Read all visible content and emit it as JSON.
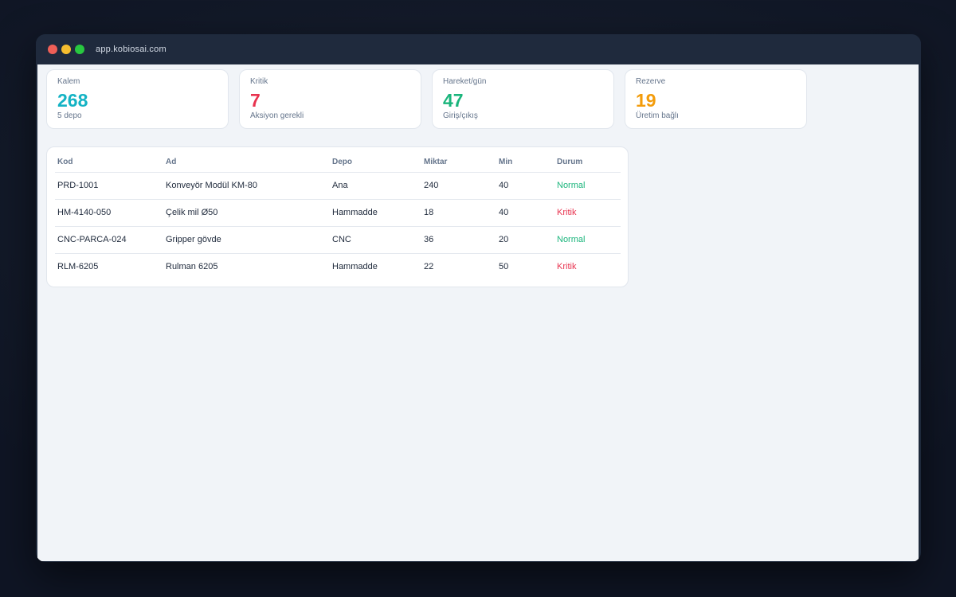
{
  "browser": {
    "url": "app.kobiosai.com"
  },
  "stats": [
    {
      "label": "Kalem",
      "value": "268",
      "sub": "5 depo",
      "color": "#14b3c4"
    },
    {
      "label": "Kritik",
      "value": "7",
      "sub": "Aksiyon gerekli",
      "color": "#e8334f"
    },
    {
      "label": "Hareket/gün",
      "value": "47",
      "sub": "Giriş/çıkış",
      "color": "#1bb57c"
    },
    {
      "label": "Rezerve",
      "value": "19",
      "sub": "Üretim bağlı",
      "color": "#f39c0b"
    }
  ],
  "table": {
    "headers": [
      "Kod",
      "Ad",
      "Depo",
      "Miktar",
      "Min",
      "Durum"
    ],
    "rows": [
      {
        "kod": "PRD-1001",
        "ad": "Konveyör Modül KM-80",
        "depo": "Ana",
        "miktar": "240",
        "min": "40",
        "durum": "Normal",
        "status": "normal"
      },
      {
        "kod": "HM-4140-050",
        "ad": "Çelik mil Ø50",
        "depo": "Hammadde",
        "miktar": "18",
        "min": "40",
        "durum": "Kritik",
        "status": "critical"
      },
      {
        "kod": "CNC-PARCA-024",
        "ad": "Gripper gövde",
        "depo": "CNC",
        "miktar": "36",
        "min": "20",
        "durum": "Normal",
        "status": "normal"
      },
      {
        "kod": "RLM-6205",
        "ad": "Rulman 6205",
        "depo": "Hammadde",
        "miktar": "22",
        "min": "50",
        "durum": "Kritik",
        "status": "critical"
      }
    ]
  },
  "status_colors": {
    "normal": "#1bb57c",
    "critical": "#e8334f"
  }
}
